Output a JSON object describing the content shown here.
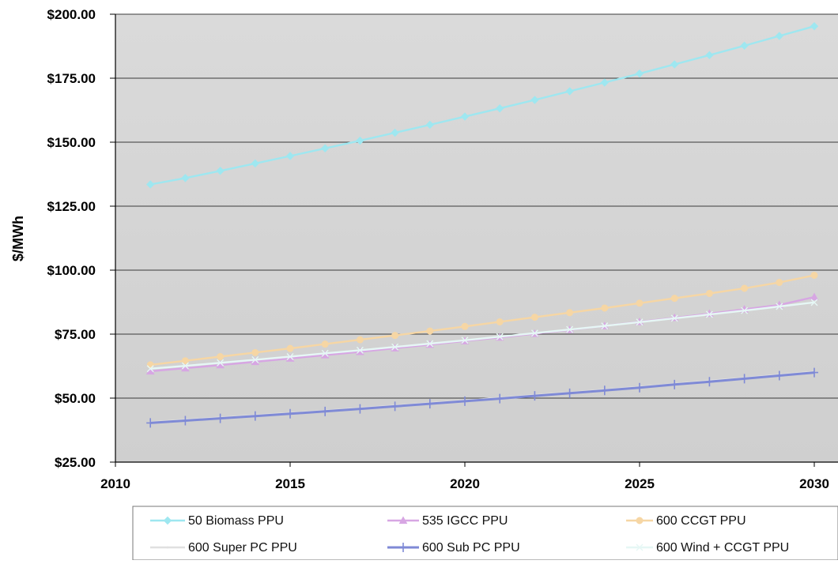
{
  "chart_data": {
    "type": "line",
    "title": "",
    "xlabel": "",
    "ylabel": "$/MWh",
    "xlim": [
      2010,
      2030
    ],
    "ylim": [
      25,
      200
    ],
    "x_ticks": [
      2010,
      2015,
      2020,
      2025,
      2030
    ],
    "y_ticks": [
      25,
      50,
      75,
      100,
      125,
      150,
      175,
      200
    ],
    "y_tick_labels": [
      "$25.00",
      "$50.00",
      "$75.00",
      "$100.00",
      "$125.00",
      "$150.00",
      "$175.00",
      "$200.00"
    ],
    "grid": "horizontal",
    "legend_position": "bottom",
    "x": [
      2011,
      2012,
      2013,
      2014,
      2015,
      2016,
      2017,
      2018,
      2019,
      2020,
      2021,
      2022,
      2023,
      2024,
      2025,
      2026,
      2027,
      2028,
      2029,
      2030
    ],
    "series": [
      {
        "name": "50 Biomass PPU",
        "color": "#9ee7f0",
        "marker": "diamond",
        "values": [
          133.5,
          136,
          138.8,
          141.7,
          144.6,
          147.6,
          150.6,
          153.7,
          156.8,
          160,
          163.2,
          166.5,
          169.9,
          173.3,
          176.8,
          180.4,
          184,
          187.7,
          191.5,
          195.3
        ]
      },
      {
        "name": "535 IGCC PPU",
        "color": "#d7a6e3",
        "marker": "triangle",
        "values": [
          60.5,
          61.7,
          62.9,
          64.2,
          65.5,
          66.8,
          68.1,
          69.5,
          70.9,
          72.3,
          73.7,
          75.2,
          76.7,
          78.2,
          79.8,
          81.4,
          83,
          84.7,
          86.4,
          89.5
        ]
      },
      {
        "name": "600 CCGT PPU",
        "color": "#f6d6a4",
        "marker": "circle",
        "values": [
          63,
          64.6,
          66.2,
          67.8,
          69.4,
          71.1,
          72.8,
          74.5,
          76.2,
          78,
          79.8,
          81.6,
          83.4,
          85.2,
          87.1,
          89,
          90.9,
          92.9,
          95.2,
          98
        ]
      },
      {
        "name": "600 Super PC PPU",
        "color": "#e0e0e0",
        "marker": "none",
        "values": [
          40.6,
          41.5,
          42.4,
          43.3,
          44.2,
          45.1,
          46.1,
          47.1,
          48.1,
          49.1,
          50.1,
          51.2,
          52.2,
          53.3,
          54.4,
          55.6,
          56.8,
          57.9,
          59.1,
          60.3
        ]
      },
      {
        "name": "600 Sub PC PPU",
        "color": "#7f8ad6",
        "marker": "plus",
        "values": [
          40.3,
          41.2,
          42.1,
          43,
          43.9,
          44.8,
          45.8,
          46.8,
          47.8,
          48.8,
          49.8,
          50.9,
          51.9,
          53,
          54.1,
          55.3,
          56.4,
          57.6,
          58.8,
          60
        ]
      },
      {
        "name": "600 Wind + CCGT PPU",
        "color": "#e6f7f5",
        "marker": "x",
        "values": [
          61.5,
          62.6,
          63.8,
          65,
          66.2,
          67.5,
          68.7,
          70,
          71.3,
          72.6,
          74,
          75.4,
          76.8,
          78.2,
          79.7,
          81.2,
          82.7,
          84.2,
          85.8,
          87.4
        ]
      }
    ]
  }
}
